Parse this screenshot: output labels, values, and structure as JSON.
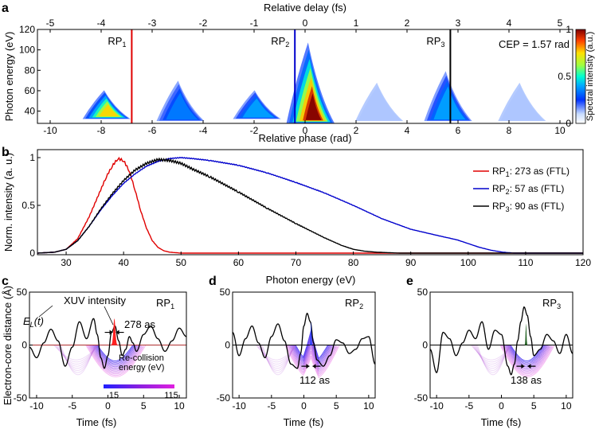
{
  "panel_labels": {
    "a": "a",
    "b": "b",
    "c": "c",
    "d": "d",
    "e": "e"
  },
  "chart_data": [
    {
      "panel": "a",
      "type": "heatmap",
      "title": "",
      "xlabel": "Relative phase (rad)",
      "x2label": "Relative delay (fs)",
      "ylabel": "Photon energy (eV)",
      "xlim": [
        -10.5,
        10.5
      ],
      "ylim": [
        28,
        120
      ],
      "xticks": [
        -10,
        -8,
        -6,
        -4,
        -2,
        0,
        2,
        4,
        6,
        8,
        10
      ],
      "x2ticks": [
        -5,
        -4,
        -3,
        -2,
        -1,
        0,
        1,
        2,
        3,
        4,
        5
      ],
      "yticks": [
        40,
        60,
        80,
        100,
        120
      ],
      "annotation": "CEP = 1.57 rad",
      "colorbar": {
        "label": "Spectral intensity (a.u.)",
        "ticks": [
          0,
          0.5,
          1
        ],
        "range": [
          0,
          1
        ],
        "colormap": "jet"
      },
      "blobs": [
        {
          "x": -7.8,
          "e0": 32,
          "e1": 62,
          "peak": 0.8
        },
        {
          "x": -4.9,
          "e0": 30,
          "e1": 72,
          "peak": 0.45
        },
        {
          "x": -1.9,
          "e0": 32,
          "e1": 62,
          "peak": 0.55
        },
        {
          "x": 0.2,
          "e0": 28,
          "e1": 112,
          "peak": 1.0
        },
        {
          "x": 2.9,
          "e0": 30,
          "e1": 70,
          "peak": 0.12
        },
        {
          "x": 5.6,
          "e0": 30,
          "e1": 82,
          "peak": 0.55
        },
        {
          "x": 8.5,
          "e0": 30,
          "e1": 70,
          "peak": 0.12
        }
      ],
      "markers": [
        {
          "name": "RP",
          "sub": "1",
          "x": -6.8,
          "color": "#e00000"
        },
        {
          "name": "RP",
          "sub": "2",
          "x": -0.4,
          "color": "#0000cc"
        },
        {
          "name": "RP",
          "sub": "3",
          "x": 5.7,
          "color": "#000000"
        }
      ]
    },
    {
      "panel": "b",
      "type": "line",
      "xlabel": "Photon energy (eV)",
      "ylabel": "Norm. intensity (a. u.)",
      "xlim": [
        25,
        120
      ],
      "ylim": [
        0,
        1.05
      ],
      "xticks": [
        30,
        40,
        50,
        60,
        70,
        80,
        90,
        100,
        110,
        120
      ],
      "yticks": [
        0,
        0.5,
        1
      ],
      "ytick_labels": [
        "0",
        "0.5",
        "1"
      ],
      "legend_position": "top-right",
      "series": [
        {
          "name": "RP",
          "sub": "1",
          "suffix": ": 273 as (FTL)",
          "color": "#e00000",
          "x": [
            25,
            28,
            30,
            32,
            34,
            36,
            37,
            38,
            39,
            40,
            41,
            42,
            43,
            44,
            45,
            46,
            47,
            48,
            50,
            120
          ],
          "y": [
            0,
            0.01,
            0.04,
            0.15,
            0.38,
            0.66,
            0.8,
            0.91,
            0.99,
            0.97,
            0.86,
            0.66,
            0.44,
            0.26,
            0.13,
            0.06,
            0.025,
            0.01,
            0,
            0
          ]
        },
        {
          "name": "RP",
          "sub": "2",
          "suffix": ": 57 as (FTL)",
          "color": "#0000cc",
          "x": [
            25,
            28,
            30,
            32,
            34,
            36,
            38,
            40,
            42,
            44,
            46,
            48,
            50,
            52,
            55,
            60,
            65,
            70,
            75,
            80,
            85,
            90,
            95,
            98,
            100,
            102,
            104,
            106,
            108,
            120
          ],
          "y": [
            0,
            0.01,
            0.04,
            0.13,
            0.28,
            0.45,
            0.6,
            0.73,
            0.83,
            0.91,
            0.96,
            0.99,
            1.0,
            0.99,
            0.97,
            0.92,
            0.84,
            0.74,
            0.63,
            0.5,
            0.36,
            0.25,
            0.18,
            0.14,
            0.1,
            0.06,
            0.03,
            0.01,
            0,
            0
          ]
        },
        {
          "name": "RP",
          "sub": "3",
          "suffix": ": 90 as (FTL)",
          "color": "#000000",
          "x": [
            25,
            28,
            30,
            32,
            34,
            36,
            38,
            40,
            42,
            44,
            46,
            48,
            50,
            52,
            55,
            60,
            65,
            70,
            75,
            78,
            80,
            82,
            84,
            86,
            88,
            90,
            120
          ],
          "y": [
            0,
            0.01,
            0.04,
            0.13,
            0.28,
            0.46,
            0.62,
            0.76,
            0.87,
            0.94,
            0.98,
            0.97,
            0.94,
            0.88,
            0.8,
            0.64,
            0.47,
            0.31,
            0.16,
            0.08,
            0.04,
            0.02,
            0.01,
            0.005,
            0,
            0,
            0
          ]
        }
      ]
    },
    {
      "panel": "c",
      "type": "line",
      "xlabel": "Time (fs)",
      "ylabel": "Electron-core distance (Å)",
      "xlim": [
        -11,
        11
      ],
      "ylim": [
        -50,
        50
      ],
      "xticks": [
        -10,
        -5,
        0,
        5,
        10
      ],
      "yticks": [
        -50,
        0,
        50
      ],
      "rp_label": {
        "name": "RP",
        "sub": "1"
      },
      "field_label": "E",
      "field_sub": "L",
      "field_arg": "(t)",
      "xuv_label": "XUV intensity",
      "width_label": "278 as",
      "colorbar_title": "Re-collision energy (eV)",
      "colorbar_ticks": [
        "15",
        "115"
      ],
      "field": {
        "x": [
          -11,
          -10,
          -9,
          -8,
          -7,
          -6,
          -5,
          -4,
          -3,
          -2,
          -1.5,
          -1,
          -0.5,
          0,
          0.5,
          1,
          1.5,
          2,
          2.5,
          3,
          3.5,
          4,
          5,
          6,
          7,
          8,
          9,
          10,
          11
        ],
        "y": [
          -2,
          -12,
          2,
          15,
          4,
          -20,
          -2,
          22,
          6,
          25,
          10,
          -12,
          -22,
          -10,
          12,
          18,
          4,
          -10,
          -4,
          8,
          2,
          -6,
          10,
          18,
          6,
          -6,
          4,
          16,
          8
        ]
      },
      "pulse": {
        "t0": 0.9,
        "width": 0.28,
        "height": 25
      }
    },
    {
      "panel": "d",
      "type": "line",
      "xlabel": "Time (fs)",
      "ylabel": "",
      "xlim": [
        -11,
        11
      ],
      "ylim": [
        -50,
        50
      ],
      "xticks": [
        -10,
        -5,
        0,
        5,
        10
      ],
      "yticks": [
        -50,
        0,
        50
      ],
      "rp_label": {
        "name": "RP",
        "sub": "2"
      },
      "width_label": "112 as",
      "field": {
        "x": [
          -11,
          -10,
          -9,
          -8,
          -7,
          -6,
          -5,
          -4,
          -3,
          -2,
          -1,
          -0.5,
          0,
          0.5,
          1,
          1.5,
          2,
          3,
          4,
          5,
          6,
          7,
          8,
          9,
          10,
          11
        ],
        "y": [
          12,
          -10,
          6,
          18,
          2,
          -12,
          8,
          20,
          4,
          -18,
          -22,
          -8,
          18,
          30,
          22,
          2,
          -14,
          -20,
          -10,
          5,
          2,
          -8,
          -4,
          6,
          8,
          -18
        ]
      },
      "pulse": {
        "t0": 1.1,
        "width": 0.12,
        "height": 22
      }
    },
    {
      "panel": "e",
      "type": "line",
      "xlabel": "Time (fs)",
      "ylabel": "",
      "xlim": [
        -11,
        11
      ],
      "ylim": [
        -50,
        50
      ],
      "xticks": [
        -10,
        -5,
        0,
        5,
        10
      ],
      "yticks": [
        -50,
        0,
        50
      ],
      "rp_label": {
        "name": "RP",
        "sub": "3"
      },
      "width_label": "138 as",
      "field": {
        "x": [
          -11,
          -10,
          -9,
          -8,
          -7,
          -6,
          -5,
          -4,
          -3,
          -2,
          -1,
          0,
          1,
          1.5,
          2,
          2.5,
          3,
          3.5,
          4,
          4.5,
          5,
          6,
          7,
          8,
          9,
          10,
          11
        ],
        "y": [
          -4,
          -26,
          12,
          6,
          -10,
          2,
          14,
          6,
          22,
          -4,
          14,
          10,
          -20,
          -28,
          -18,
          4,
          22,
          36,
          28,
          8,
          -10,
          -4,
          10,
          4,
          -8,
          10,
          -8
        ]
      },
      "pulse": {
        "t0": 3.8,
        "width": 0.14,
        "height": 20
      }
    }
  ]
}
